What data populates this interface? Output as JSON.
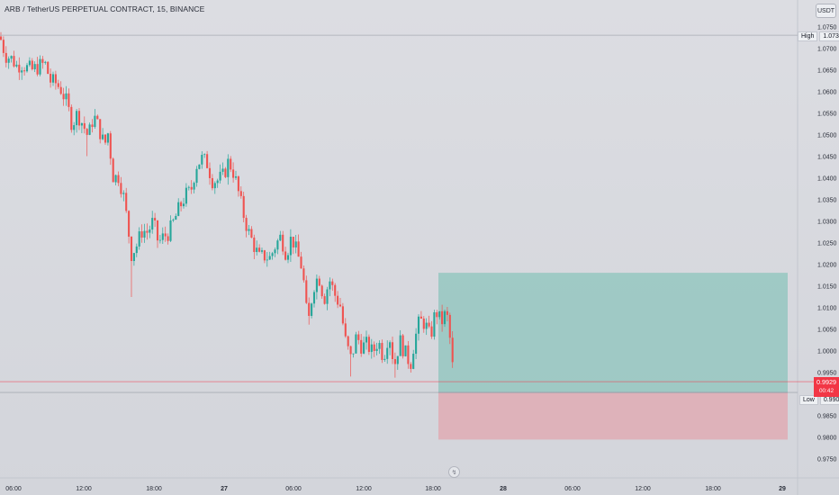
{
  "header": {
    "title": "ARB / TetherUS PERPETUAL CONTRACT, 15, BINANCE",
    "currency_button": "USDT"
  },
  "markers": {
    "high_label": "High",
    "high_value": "1.0731",
    "low_label": "Low",
    "low_value": "0.9904",
    "current_price": "0.9929",
    "countdown": "00:42"
  },
  "colors": {
    "up": "#26a69a",
    "down": "#ef5350",
    "profit_zone": "#8cc4bc",
    "loss_zone": "#e0a9b1",
    "price_line": "#f23645"
  },
  "chart_data": {
    "type": "candlestick",
    "ylim": [
      0.9745,
      1.0765
    ],
    "y_ticks": [
      "1.0750",
      "1.0700",
      "1.0650",
      "1.0600",
      "1.0550",
      "1.0500",
      "1.0450",
      "1.0400",
      "1.0350",
      "1.0300",
      "1.0250",
      "1.0200",
      "1.0150",
      "1.0100",
      "1.0050",
      "1.0000",
      "0.9950",
      "0.9900",
      "0.9850",
      "0.9800",
      "0.9750"
    ],
    "x_ticks": [
      "06:00",
      "12:00",
      "18:00",
      "27",
      "06:00",
      "12:00",
      "18:00",
      "28",
      "06:00",
      "12:00",
      "18:00",
      "29"
    ],
    "high": 1.0731,
    "low": 0.9904,
    "last_price": 0.9929,
    "candles_path": [
      [
        0,
        1.0728
      ],
      [
        6,
        1.0685
      ],
      [
        14,
        1.0675
      ],
      [
        18,
        1.066
      ],
      [
        24,
        1.0665
      ],
      [
        30,
        1.0655
      ],
      [
        36,
        1.065
      ],
      [
        44,
        1.066
      ],
      [
        50,
        1.0665
      ],
      [
        56,
        1.0625
      ],
      [
        62,
        1.062
      ],
      [
        68,
        1.0605
      ],
      [
        74,
        1.0575
      ],
      [
        80,
        1.0525
      ],
      [
        86,
        1.055
      ],
      [
        92,
        1.0525
      ],
      [
        98,
        1.0495
      ],
      [
        104,
        1.0545
      ],
      [
        110,
        1.0515
      ],
      [
        116,
        1.0475
      ],
      [
        120,
        1.0505
      ],
      [
        126,
        1.04
      ],
      [
        132,
        1.0405
      ],
      [
        138,
        1.035
      ],
      [
        146,
        1.0225
      ],
      [
        152,
        1.0245
      ],
      [
        158,
        1.028
      ],
      [
        164,
        1.0275
      ],
      [
        170,
        1.03
      ],
      [
        176,
        1.025
      ],
      [
        182,
        1.0265
      ],
      [
        188,
        1.0275
      ],
      [
        194,
        1.0305
      ],
      [
        200,
        1.0335
      ],
      [
        206,
        1.036
      ],
      [
        212,
        1.037
      ],
      [
        218,
        1.043
      ],
      [
        224,
        1.0445
      ],
      [
        230,
        1.0435
      ],
      [
        236,
        1.0395
      ],
      [
        242,
        1.0395
      ],
      [
        248,
        1.0405
      ],
      [
        254,
        1.044
      ],
      [
        260,
        1.041
      ],
      [
        264,
        1.0375
      ],
      [
        270,
        1.032
      ],
      [
        276,
        1.0275
      ],
      [
        282,
        1.0245
      ],
      [
        288,
        1.0215
      ],
      [
        294,
        1.022
      ],
      [
        300,
        1.0215
      ],
      [
        306,
        1.0245
      ],
      [
        312,
        1.0265
      ],
      [
        318,
        1.0225
      ],
      [
        324,
        1.0265
      ],
      [
        330,
        1.0225
      ],
      [
        336,
        1.019
      ],
      [
        342,
        1.0055
      ],
      [
        348,
        1.015
      ],
      [
        354,
        1.0175
      ],
      [
        360,
        1.012
      ],
      [
        366,
        1.0165
      ],
      [
        372,
        1.013
      ],
      [
        378,
        1.0105
      ],
      [
        384,
        1.002
      ],
      [
        390,
        0.998
      ],
      [
        396,
        1.0035
      ],
      [
        402,
        1.001
      ],
      [
        408,
        1.0015
      ],
      [
        414,
        0.9995
      ],
      [
        420,
        1.0025
      ],
      [
        426,
        0.9985
      ],
      [
        432,
        1.0045
      ],
      [
        438,
        0.9965
      ],
      [
        444,
        1.0025
      ],
      [
        450,
        0.9995
      ],
      [
        456,
        0.997
      ],
      [
        460,
        1.002
      ],
      [
        466,
        1.007
      ],
      [
        472,
        1.0065
      ],
      [
        478,
        1.003
      ],
      [
        484,
        1.0095
      ],
      [
        490,
        1.0065
      ],
      [
        496,
        1.009
      ],
      [
        500,
        1.0025
      ],
      [
        504,
        0.9935
      ]
    ],
    "position_tool": {
      "type": "long",
      "entry": 0.9904,
      "target": 1.0181,
      "stop": 0.9795,
      "start_x_frac": 0.556,
      "end_x_frac": 1.0
    }
  }
}
